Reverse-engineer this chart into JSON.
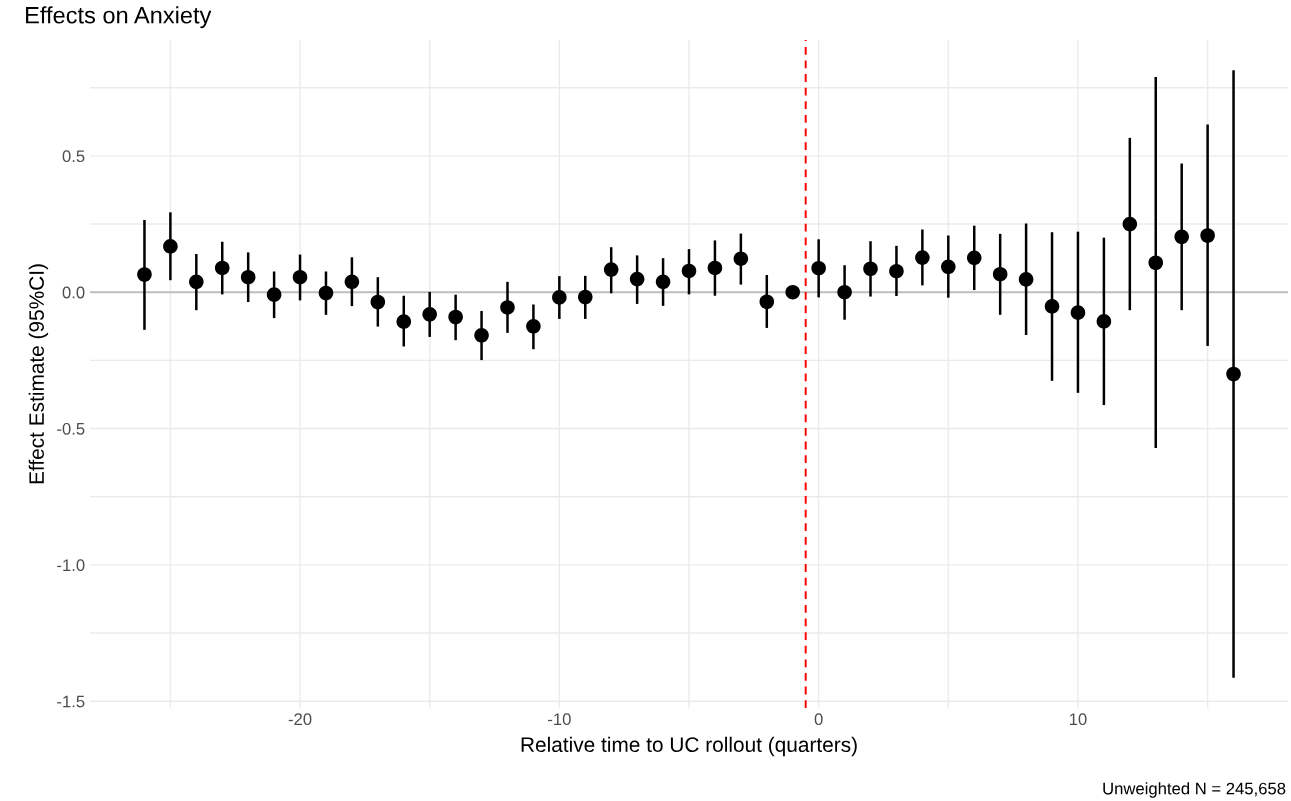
{
  "chart_data": {
    "type": "scatter",
    "title": "Effects on Anxiety",
    "xlabel": "Relative time to UC rollout (quarters)",
    "ylabel": "Effect Estimate (95%CI)",
    "annotations": [
      "Unweighted N = 245,658"
    ],
    "x": [
      -26,
      -25,
      -24,
      -23,
      -22,
      -21,
      -20,
      -19,
      -18,
      -17,
      -16,
      -15,
      -14,
      -13,
      -12,
      -11,
      -10,
      -9,
      -8,
      -7,
      -6,
      -5,
      -4,
      -3,
      -2,
      -1,
      0,
      1,
      2,
      3,
      4,
      5,
      6,
      7,
      8,
      9,
      10,
      11,
      12,
      13,
      14,
      15,
      16
    ],
    "series": [
      {
        "color": "#000000",
        "values": [
          0.065,
          0.168,
          0.038,
          0.089,
          0.055,
          -0.009,
          0.055,
          -0.003,
          0.038,
          -0.036,
          -0.108,
          -0.081,
          -0.091,
          -0.158,
          -0.056,
          -0.125,
          -0.019,
          -0.018,
          0.083,
          0.048,
          0.038,
          0.078,
          0.089,
          0.123,
          -0.035,
          0,
          0.088,
          0,
          0.086,
          0.077,
          0.127,
          0.093,
          0.126,
          0.066,
          0.047,
          -0.052,
          -0.075,
          -0.107,
          0.25,
          0.108,
          0.203,
          0.208,
          -0.3
        ],
        "errors": [
          [
            -0.138,
            0.265
          ],
          [
            0.044,
            0.293
          ],
          [
            -0.066,
            0.14
          ],
          [
            -0.008,
            0.185
          ],
          [
            -0.036,
            0.146
          ],
          [
            -0.095,
            0.076
          ],
          [
            -0.03,
            0.138
          ],
          [
            -0.083,
            0.076
          ],
          [
            -0.051,
            0.128
          ],
          [
            -0.126,
            0.055
          ],
          [
            -0.199,
            -0.013
          ],
          [
            -0.164,
            0.001
          ],
          [
            -0.176,
            -0.009
          ],
          [
            -0.249,
            -0.069
          ],
          [
            -0.149,
            0.038
          ],
          [
            -0.209,
            -0.045
          ],
          [
            -0.098,
            0.059
          ],
          [
            -0.098,
            0.06
          ],
          [
            -0.004,
            0.165
          ],
          [
            -0.043,
            0.135
          ],
          [
            -0.05,
            0.125
          ],
          [
            -0.008,
            0.158
          ],
          [
            -0.013,
            0.19
          ],
          [
            0.028,
            0.215
          ],
          [
            -0.131,
            0.063
          ],
          null,
          [
            -0.019,
            0.194
          ],
          [
            -0.101,
            0.099
          ],
          [
            -0.016,
            0.187
          ],
          [
            -0.014,
            0.17
          ],
          [
            0.025,
            0.23
          ],
          [
            -0.02,
            0.208
          ],
          [
            0.008,
            0.244
          ],
          [
            -0.083,
            0.214
          ],
          [
            -0.157,
            0.252
          ],
          [
            -0.325,
            0.22
          ],
          [
            -0.369,
            0.222
          ],
          [
            -0.414,
            0.2
          ],
          [
            -0.066,
            0.566
          ],
          [
            -0.571,
            0.789
          ],
          [
            -0.066,
            0.472
          ],
          [
            -0.197,
            0.615
          ],
          [
            -1.414,
            0.814
          ]
        ]
      }
    ],
    "marker": "circle",
    "xlim": [
      -28.1,
      18.1
    ],
    "xticks": [
      {
        "value": -25,
        "label": null
      },
      -20,
      {
        "value": -15,
        "label": null
      },
      -10,
      {
        "value": -5,
        "label": null
      },
      0,
      {
        "value": 5,
        "label": null
      },
      10,
      {
        "value": 15,
        "label": null
      }
    ],
    "ylim": [
      -1.525,
      0.925
    ],
    "yticks": [
      -1.5,
      {
        "value": -1.25,
        "label": null
      },
      {
        "value": -1,
        "label": "-1.0"
      },
      {
        "value": -0.75,
        "label": null
      },
      -0.5,
      {
        "value": -0.25,
        "label": null
      },
      {
        "value": 0,
        "label": "0.0"
      },
      {
        "value": 0.25,
        "label": null
      },
      0.5,
      {
        "value": 0.75,
        "label": null
      }
    ],
    "grid": true,
    "ref_lines": [
      {
        "axis": "y",
        "value": 0,
        "label": null,
        "color": "#bebebe",
        "line_style": "solid"
      },
      {
        "axis": "x",
        "value": -0.5,
        "label": null,
        "color": "#ff0000",
        "line_style": "dashed"
      }
    ]
  }
}
